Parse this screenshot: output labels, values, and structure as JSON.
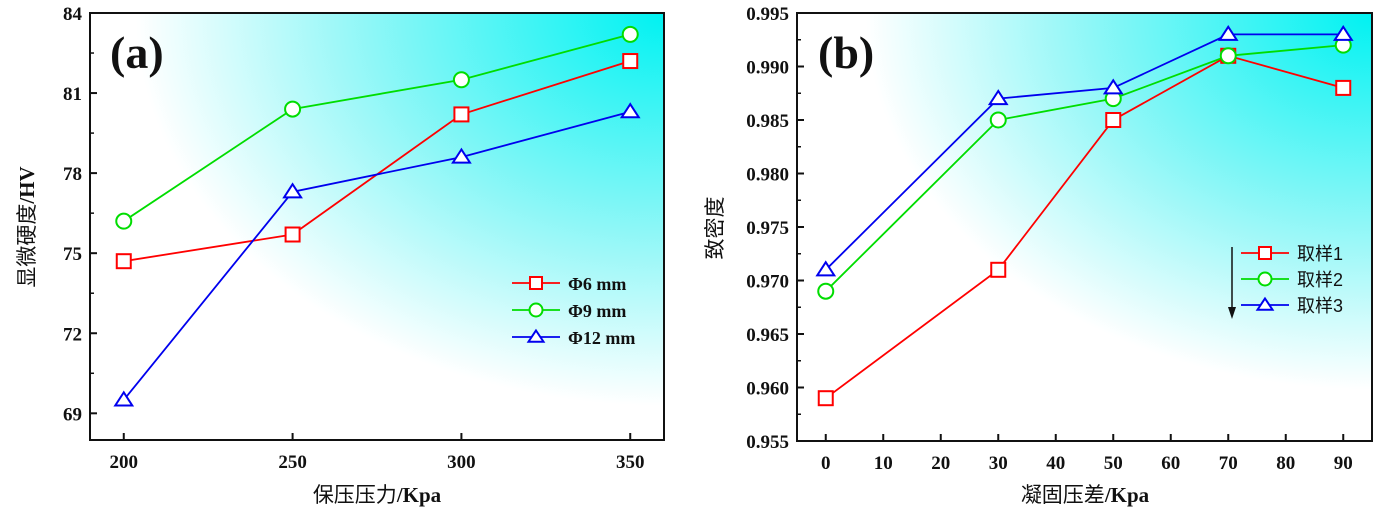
{
  "chart_data": [
    {
      "type": "line",
      "panel_label": "(a)",
      "title": "",
      "xlabel_cn": "保压压力",
      "xlabel_unit": "/Kpa",
      "ylabel_cn": "显微硬度",
      "ylabel_unit": "/HV",
      "x": [
        200,
        250,
        300,
        350
      ],
      "xticks": [
        "200",
        "250",
        "300",
        "350"
      ],
      "xtick_values": [
        200,
        250,
        300,
        350
      ],
      "yticks": [
        "69",
        "72",
        "75",
        "78",
        "81",
        "84"
      ],
      "ytick_values": [
        69,
        72,
        75,
        78,
        81,
        84
      ],
      "yminor": [
        70.5,
        73.5,
        76.5,
        79.5,
        82.5
      ],
      "xlim": [
        190,
        360
      ],
      "ylim": [
        68,
        84
      ],
      "legend_position": "center-right",
      "series": [
        {
          "name": "Φ6 mm",
          "color": "#ff0000",
          "marker": "square",
          "values": [
            74.7,
            75.7,
            80.2,
            82.2
          ]
        },
        {
          "name": "Φ9 mm",
          "color": "#00dd00",
          "marker": "circle",
          "values": [
            76.2,
            80.4,
            81.5,
            83.2
          ]
        },
        {
          "name": "Φ12 mm",
          "color": "#0000ee",
          "marker": "triangle",
          "values": [
            69.5,
            77.3,
            78.6,
            80.3
          ]
        }
      ],
      "background": {
        "from": "#ffffff",
        "to": "#00f2f2"
      }
    },
    {
      "type": "line",
      "panel_label": "(b)",
      "title": "",
      "xlabel_cn": "凝固压差",
      "xlabel_unit": "/Kpa",
      "ylabel_cn": "致密度",
      "ylabel_unit": "",
      "x": [
        0,
        30,
        50,
        70,
        90
      ],
      "xticks": [
        "0",
        "10",
        "20",
        "30",
        "40",
        "50",
        "60",
        "70",
        "80",
        "90"
      ],
      "xtick_values": [
        0,
        10,
        20,
        30,
        40,
        50,
        60,
        70,
        80,
        90
      ],
      "yticks": [
        "0.955",
        "0.960",
        "0.965",
        "0.970",
        "0.975",
        "0.980",
        "0.985",
        "0.990",
        "0.995"
      ],
      "ytick_values": [
        0.955,
        0.96,
        0.965,
        0.97,
        0.975,
        0.98,
        0.985,
        0.99,
        0.995
      ],
      "yminor": [
        0.9575,
        0.9625,
        0.9675,
        0.9725,
        0.9775,
        0.9825,
        0.9875,
        0.9925
      ],
      "xlim": [
        -5,
        95
      ],
      "ylim": [
        0.955,
        0.995
      ],
      "legend_position": "center-right",
      "legend_arrow": "down",
      "series": [
        {
          "name": "取样1",
          "color": "#ff0000",
          "marker": "square",
          "values": [
            0.959,
            0.971,
            0.985,
            0.991,
            0.988
          ]
        },
        {
          "name": "取样2",
          "color": "#00dd00",
          "marker": "circle",
          "values": [
            0.969,
            0.985,
            0.987,
            0.991,
            0.992
          ]
        },
        {
          "name": "取样3",
          "color": "#0000ee",
          "marker": "triangle",
          "values": [
            0.971,
            0.987,
            0.988,
            0.993,
            0.993
          ]
        }
      ],
      "background": {
        "from": "#ffffff",
        "to": "#00f2f2"
      }
    }
  ]
}
